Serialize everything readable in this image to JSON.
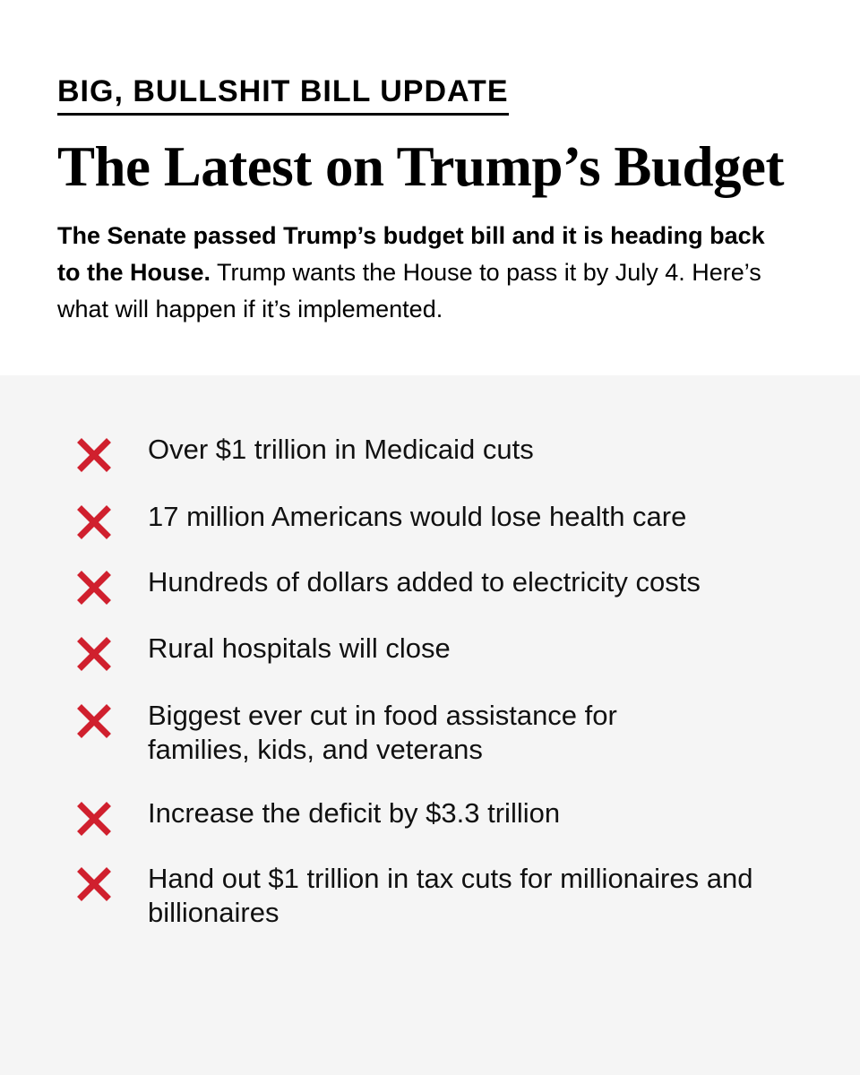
{
  "header": {
    "eyebrow": "BIG, BULLSHIT BILL UPDATE",
    "title": "The Latest on Trump’s Budget",
    "intro_bold": "The Senate passed Trump’s budget bill and it is heading back to the House.",
    "intro_rest": " Trump wants the House to pass it by July 4. Here’s what will happen if it’s implemented."
  },
  "list": {
    "icon": "x-mark-icon",
    "icon_color": "#d0202e",
    "items": [
      "Over $1 trillion in Medicaid cuts",
      "17 million Americans would lose health care",
      "Hundreds of dollars added to electricity costs",
      "Rural hospitals will close",
      "Biggest ever cut in food assistance for families, kids, and veterans",
      "Increase the deficit by $3.3 trillion",
      "Hand out $1 trillion in tax cuts for millionaires and billionaires"
    ]
  },
  "colors": {
    "panel_background": "#f5f5f5",
    "text": "#000000"
  }
}
